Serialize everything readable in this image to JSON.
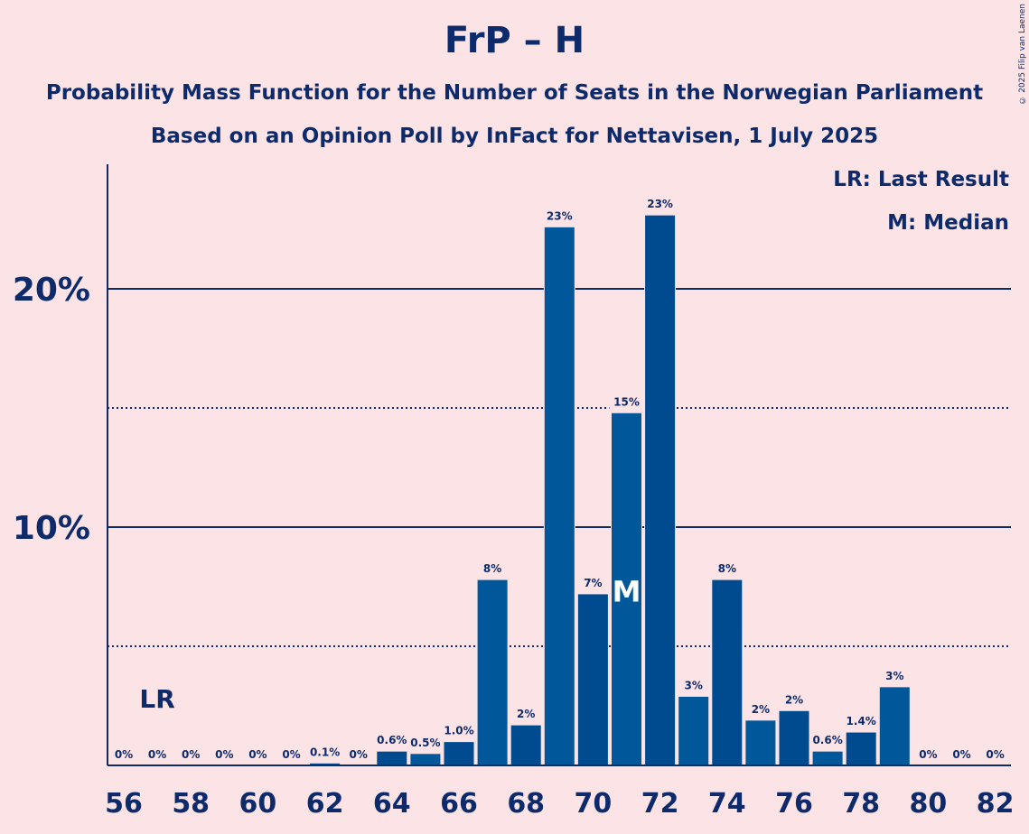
{
  "chart_data": {
    "type": "bar",
    "title": "FrP – H",
    "subtitle": "Probability Mass Function for the Number of Seats in the Norwegian Parliament",
    "subtitle2": "Based on an Opinion Poll by InFact for Nettavisen, 1 July 2025",
    "legend": [
      "LR: Last Result",
      "M: Median"
    ],
    "copyright": "© 2025 Filip van Laenen",
    "ylim": [
      0,
      25
    ],
    "y_ticks": [
      {
        "value": 10,
        "label": "10%"
      },
      {
        "value": 20,
        "label": "20%"
      }
    ],
    "x_tick_labels": [
      "56",
      "58",
      "60",
      "62",
      "64",
      "66",
      "68",
      "70",
      "72",
      "74",
      "76",
      "78",
      "80",
      "82"
    ],
    "last_result": {
      "seat": 57,
      "label": "LR"
    },
    "median": {
      "seat": 71,
      "label": "M"
    },
    "bars": [
      {
        "seat": 56,
        "value": 0,
        "label": "0%"
      },
      {
        "seat": 57,
        "value": 0,
        "label": "0%"
      },
      {
        "seat": 58,
        "value": 0,
        "label": "0%"
      },
      {
        "seat": 59,
        "value": 0,
        "label": "0%"
      },
      {
        "seat": 60,
        "value": 0,
        "label": "0%"
      },
      {
        "seat": 61,
        "value": 0,
        "label": "0%"
      },
      {
        "seat": 62,
        "value": 0.1,
        "label": "0.1%"
      },
      {
        "seat": 63,
        "value": 0,
        "label": "0%"
      },
      {
        "seat": 64,
        "value": 0.6,
        "label": "0.6%"
      },
      {
        "seat": 65,
        "value": 0.5,
        "label": "0.5%"
      },
      {
        "seat": 66,
        "value": 1.0,
        "label": "1.0%"
      },
      {
        "seat": 67,
        "value": 7.8,
        "label": "8%"
      },
      {
        "seat": 68,
        "value": 1.7,
        "label": "2%"
      },
      {
        "seat": 69,
        "value": 22.6,
        "label": "23%"
      },
      {
        "seat": 70,
        "value": 7.2,
        "label": "7%"
      },
      {
        "seat": 71,
        "value": 14.8,
        "label": "15%"
      },
      {
        "seat": 72,
        "value": 23.1,
        "label": "23%"
      },
      {
        "seat": 73,
        "value": 2.9,
        "label": "3%"
      },
      {
        "seat": 74,
        "value": 7.8,
        "label": "8%"
      },
      {
        "seat": 75,
        "value": 1.9,
        "label": "2%"
      },
      {
        "seat": 76,
        "value": 2.3,
        "label": "2%"
      },
      {
        "seat": 77,
        "value": 0.6,
        "label": "0.6%"
      },
      {
        "seat": 78,
        "value": 1.4,
        "label": "1.4%"
      },
      {
        "seat": 79,
        "value": 3.3,
        "label": "3%"
      },
      {
        "seat": 80,
        "value": 0,
        "label": "0%"
      },
      {
        "seat": 81,
        "value": 0,
        "label": "0%"
      },
      {
        "seat": 82,
        "value": 0,
        "label": "0%"
      }
    ],
    "colors": {
      "background": "#fce4e6",
      "text": "#0d2a6b",
      "bar_a": "#00579a",
      "bar_b": "#004a8f",
      "grid": "#0d2a6b"
    }
  }
}
